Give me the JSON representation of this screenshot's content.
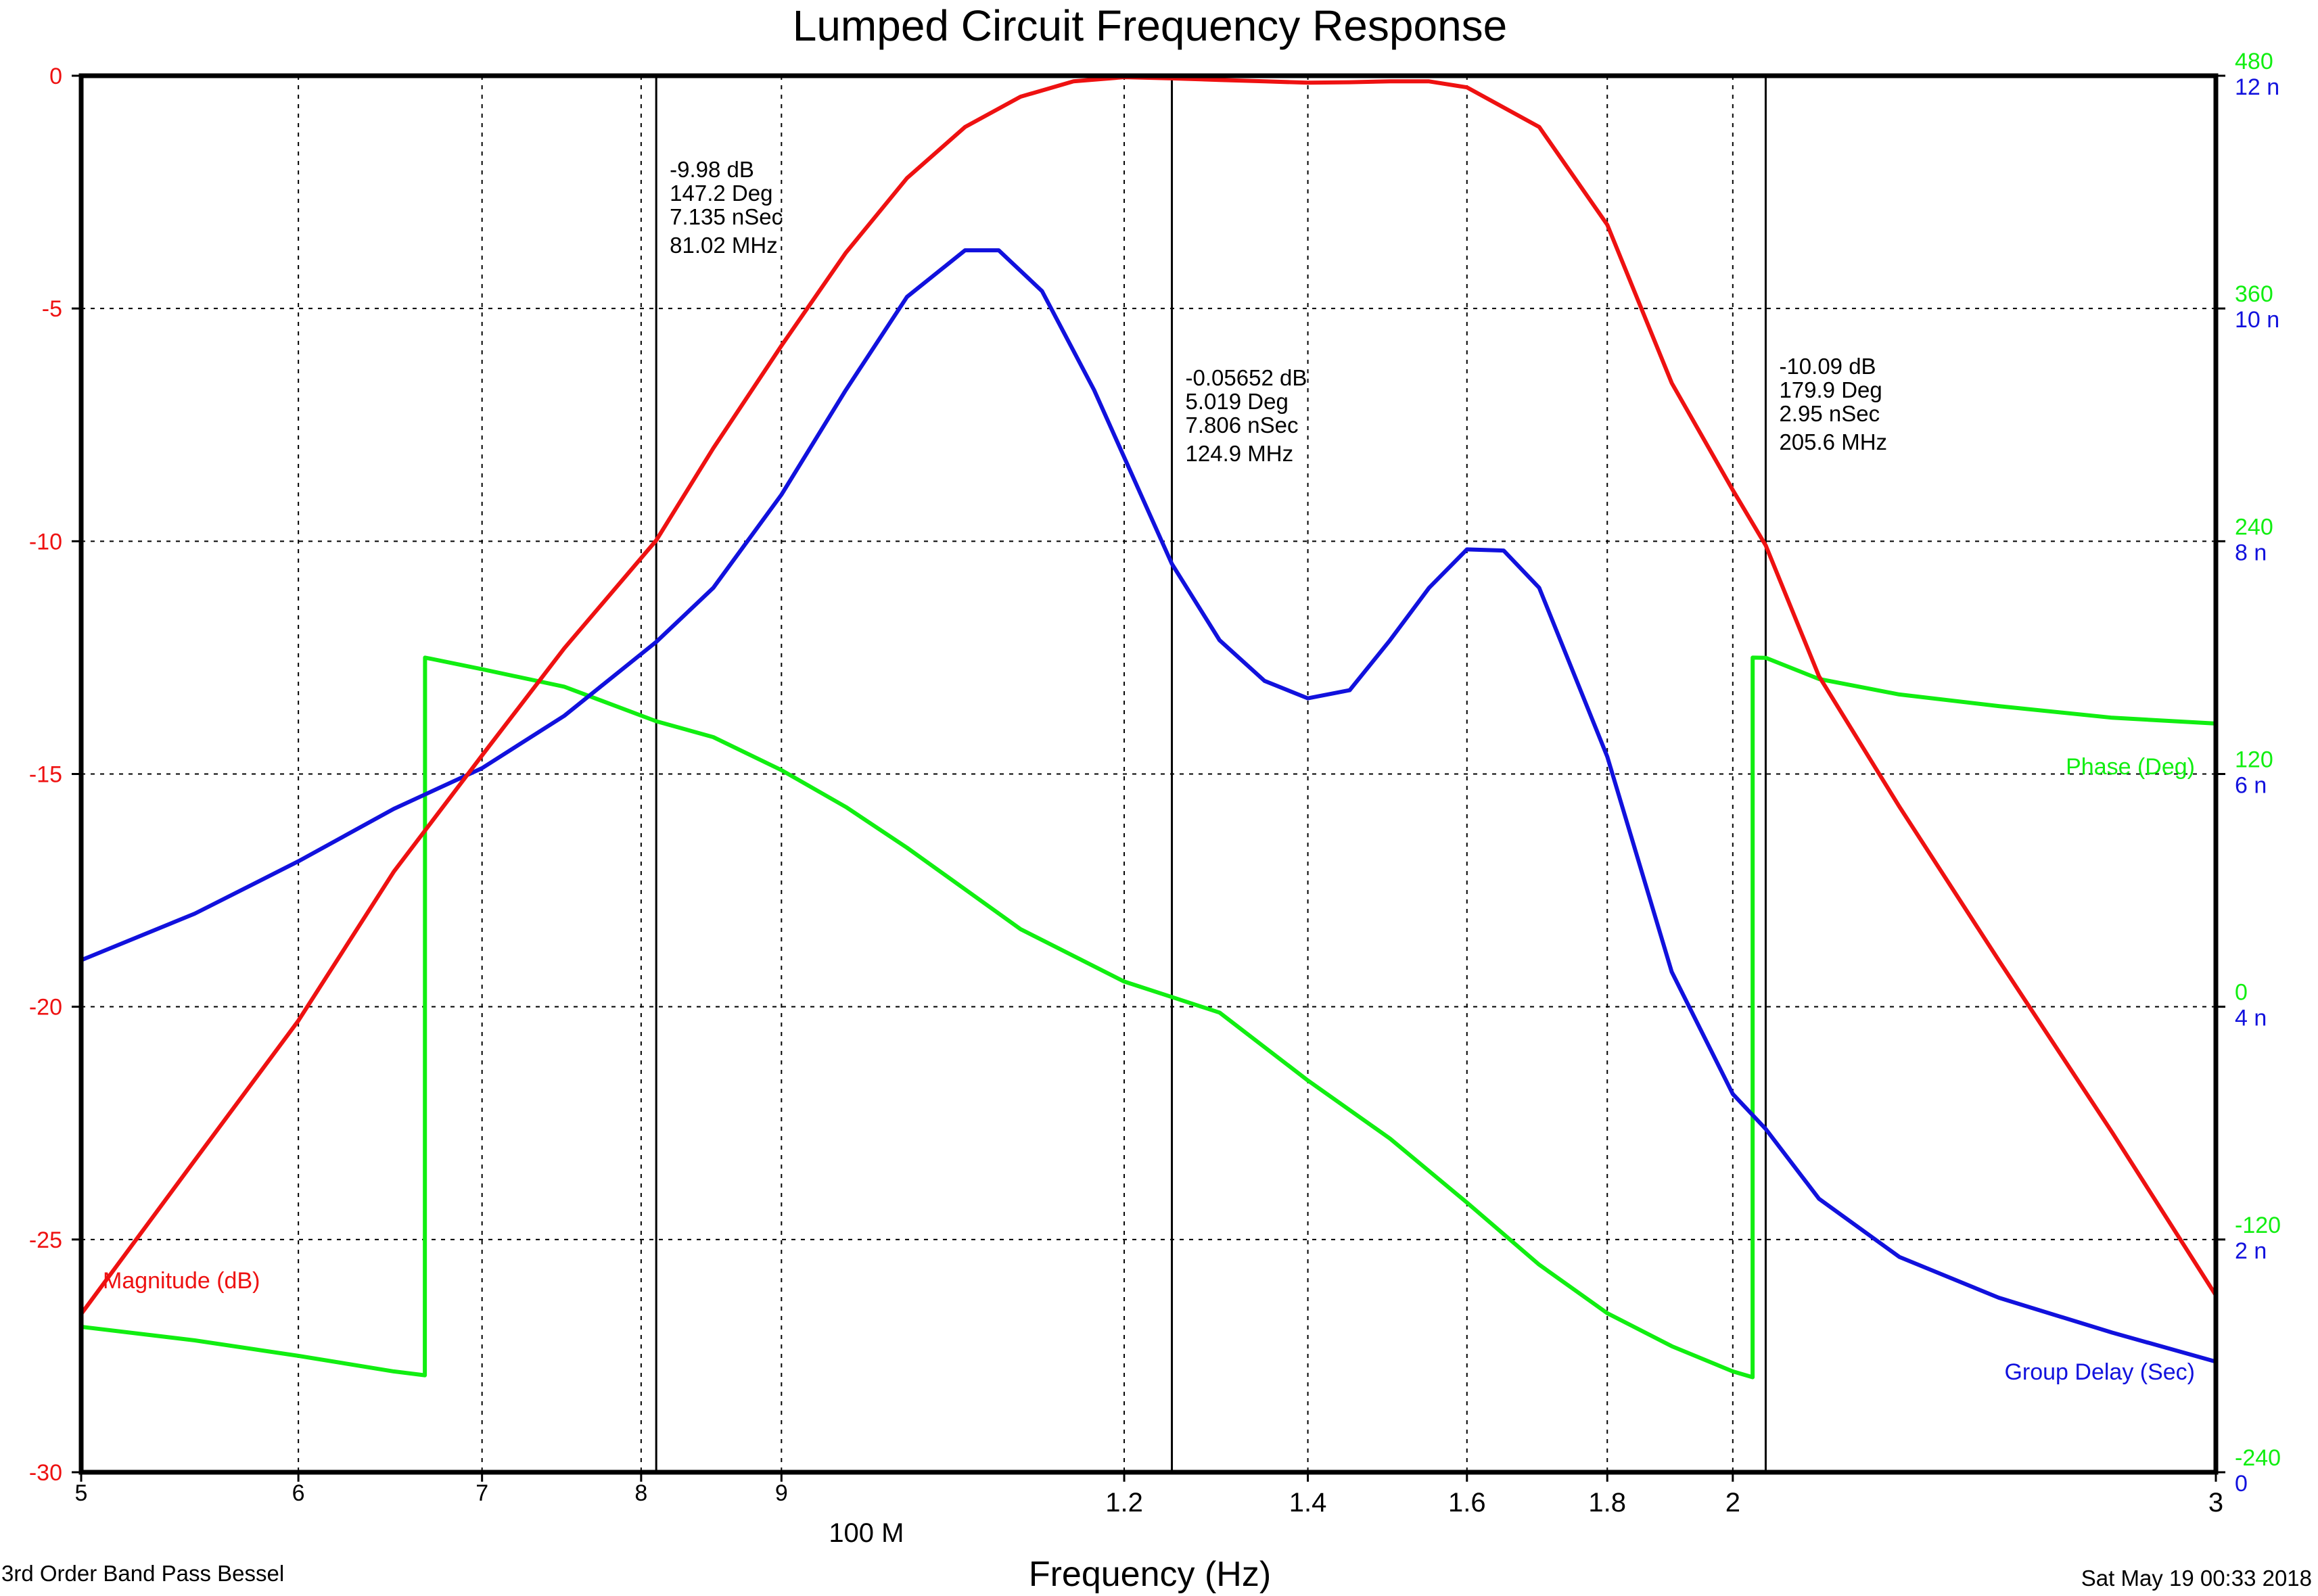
{
  "colors": {
    "magnitude": "#ee1111",
    "group_delay": "#1111dd",
    "phase": "#11ee11",
    "axis": "#000000",
    "grid": "#000000"
  },
  "footer": {
    "left": "3rd Order Band Pass Bessel",
    "right": "Sat May 19 00:33 2018"
  },
  "chart_data": {
    "type": "line",
    "title": "Lumped Circuit Frequency Response",
    "xlabel": "Frequency (Hz)",
    "x_scale": "log",
    "xlim": [
      50000000,
      300000000
    ],
    "x_ticks": [
      {
        "value": 50000000,
        "label": "5"
      },
      {
        "value": 60000000,
        "label": "6"
      },
      {
        "value": 70000000,
        "label": "7"
      },
      {
        "value": 80000000,
        "label": "8"
      },
      {
        "value": 90000000,
        "label": "9"
      },
      {
        "value": 120000000,
        "label": "1.2"
      },
      {
        "value": 140000000,
        "label": "1.4"
      },
      {
        "value": 160000000,
        "label": "1.6"
      },
      {
        "value": 180000000,
        "label": "1.8"
      },
      {
        "value": 200000000,
        "label": "2"
      },
      {
        "value": 300000000,
        "label": "3"
      }
    ],
    "x_decade_label": {
      "value": 100000000,
      "label": "100 M"
    },
    "grid": true,
    "axes": {
      "left": {
        "name": "Magnitude (dB)",
        "min": -30,
        "max": 0,
        "ticks": [
          "0",
          "-5",
          "-10",
          "-15",
          "-20",
          "-25",
          "-30"
        ]
      },
      "right_phase": {
        "name": "Phase (Deg)",
        "min": -240,
        "max": 480,
        "ticks": [
          "480",
          "360",
          "240",
          "120",
          "0",
          "-120",
          "-240"
        ]
      },
      "right_delay": {
        "name": "Group Delay (Sec)",
        "min": 0,
        "max": 12,
        "ticks": [
          "12 n",
          "10 n",
          "8 n",
          "6 n",
          "4 n",
          "2 n",
          "0"
        ]
      }
    },
    "series": [
      {
        "name": "Magnitude (dB)",
        "axis": "left",
        "x": [
          50000000,
          55000000,
          60000000,
          65000000,
          70000000,
          75000000,
          81020000,
          85000000,
          90000000,
          95000000,
          100000000,
          105000000,
          110000000,
          115000000,
          120000000,
          124900000,
          130000000,
          135000000,
          140000000,
          145000000,
          150000000,
          155000000,
          160000000,
          170000000,
          180000000,
          190000000,
          200000000,
          205600000,
          215000000,
          230000000,
          250000000,
          275000000,
          300000000
        ],
        "values": [
          -26.6,
          -23.3,
          -20.3,
          -17.1,
          -14.6,
          -12.3,
          -9.98,
          -8.0,
          -5.8,
          -3.8,
          -2.2,
          -1.1,
          -0.45,
          -0.12,
          -0.03,
          -0.05652,
          -0.09,
          -0.12,
          -0.15,
          -0.14,
          -0.12,
          -0.12,
          -0.25,
          -1.1,
          -3.2,
          -6.6,
          -8.9,
          -10.09,
          -12.9,
          -15.7,
          -19.0,
          -22.7,
          -26.2
        ]
      },
      {
        "name": "Group Delay (Sec)",
        "axis": "right_delay",
        "x": [
          50000000,
          55000000,
          60000000,
          65000000,
          70000000,
          75000000,
          81020000,
          85000000,
          90000000,
          95000000,
          100000000,
          105000000,
          108000000,
          112000000,
          117000000,
          124900000,
          130000000,
          135000000,
          140000000,
          145000000,
          150000000,
          155000000,
          160000000,
          165000000,
          170000000,
          180000000,
          190000000,
          200000000,
          205600000,
          215000000,
          230000000,
          250000000,
          275000000,
          300000000
        ],
        "values": [
          4.4e-09,
          4.8e-09,
          5.25e-09,
          5.7e-09,
          6.05e-09,
          6.5e-09,
          7.135e-09,
          7.6e-09,
          8.4e-09,
          9.3e-09,
          1.01e-08,
          1.05e-08,
          1.05e-08,
          1.015e-08,
          9.3e-09,
          7.806e-09,
          7.15e-09,
          6.8e-09,
          6.65e-09,
          6.72e-09,
          7.15e-09,
          7.6e-09,
          7.93e-09,
          7.92e-09,
          7.6e-09,
          6.15e-09,
          4.3e-09,
          3.25e-09,
          2.95e-09,
          2.35e-09,
          1.85e-09,
          1.5e-09,
          1.2e-09,
          9.5e-10
        ]
      },
      {
        "name": "Phase (Deg)",
        "axis": "right_phase",
        "x": [
          50000000,
          55000000,
          60000000,
          65000000,
          66720000,
          66730000,
          70000000,
          75000000,
          81020000,
          85000000,
          90000000,
          95000000,
          100000000,
          110000000,
          120000000,
          124900000,
          130000000,
          140000000,
          150000000,
          160000000,
          170000000,
          180000000,
          190000000,
          200000000,
          203350000,
          203360000,
          205600000,
          215000000,
          230000000,
          250000000,
          275000000,
          300000000
        ],
        "values": [
          -165,
          -172,
          -180,
          -188,
          -190,
          180,
          174,
          165,
          147.2,
          139,
          122,
          103,
          82,
          40,
          13,
          5.019,
          -3,
          -38,
          -68,
          -101,
          -133,
          -158,
          -175,
          -188,
          -191,
          180,
          179.9,
          169,
          161,
          155,
          149,
          146
        ]
      }
    ],
    "markers": [
      {
        "lines": [
          "-9.98 dB",
          "147.2 Deg",
          "7.135 nSec",
          "81.02 MHz"
        ],
        "x": 81020000
      },
      {
        "lines": [
          "-0.05652 dB",
          "5.019 Deg",
          "7.806 nSec",
          "124.9 MHz"
        ],
        "x": 124900000
      },
      {
        "lines": [
          "-10.09 dB",
          "179.9 Deg",
          "2.95 nSec",
          "205.6 MHz"
        ],
        "x": 205600000
      }
    ]
  }
}
